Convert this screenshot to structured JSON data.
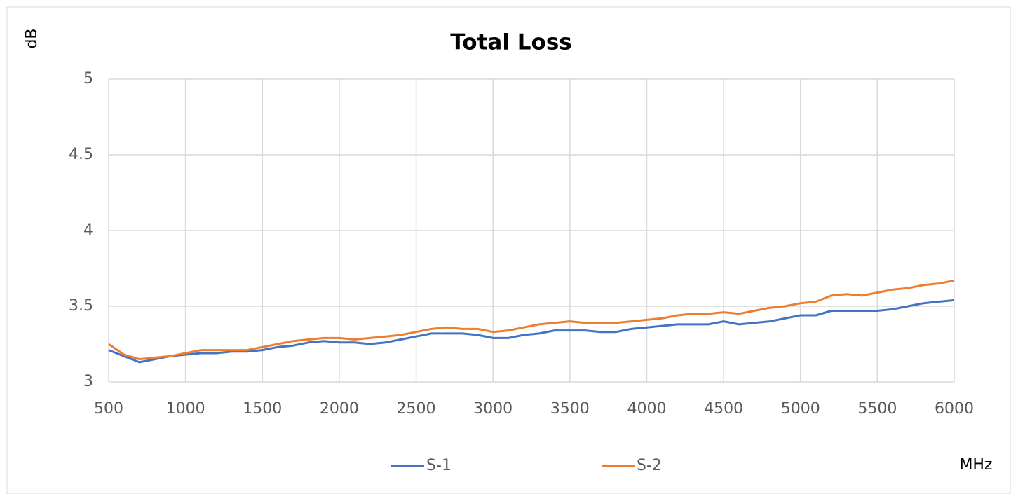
{
  "chart_data": {
    "type": "line",
    "title": "Total Loss",
    "y_label": "dB",
    "x_label": "MHz",
    "x": [
      500,
      600,
      700,
      800,
      900,
      1000,
      1100,
      1200,
      1300,
      1400,
      1500,
      1600,
      1700,
      1800,
      1900,
      2000,
      2100,
      2200,
      2300,
      2400,
      2500,
      2600,
      2700,
      2800,
      2900,
      3000,
      3100,
      3200,
      3300,
      3400,
      3500,
      3600,
      3700,
      3800,
      3900,
      4000,
      4100,
      4200,
      4300,
      4400,
      4500,
      4600,
      4700,
      4800,
      4900,
      5000,
      5100,
      5200,
      5300,
      5400,
      5500,
      5600,
      5700,
      5800,
      5900,
      6000
    ],
    "series": [
      {
        "name": "S-1",
        "color": "#4472c4",
        "values": [
          3.21,
          3.17,
          3.13,
          3.15,
          3.17,
          3.18,
          3.19,
          3.19,
          3.2,
          3.2,
          3.21,
          3.23,
          3.24,
          3.26,
          3.27,
          3.26,
          3.26,
          3.25,
          3.26,
          3.28,
          3.3,
          3.32,
          3.32,
          3.32,
          3.31,
          3.29,
          3.29,
          3.31,
          3.32,
          3.34,
          3.34,
          3.34,
          3.33,
          3.33,
          3.35,
          3.36,
          3.37,
          3.38,
          3.38,
          3.38,
          3.4,
          3.38,
          3.39,
          3.4,
          3.42,
          3.44,
          3.44,
          3.47,
          3.47,
          3.47,
          3.47,
          3.48,
          3.5,
          3.52,
          3.53,
          3.54
        ]
      },
      {
        "name": "S-2",
        "color": "#ed7d31",
        "values": [
          3.25,
          3.18,
          3.15,
          3.16,
          3.17,
          3.19,
          3.21,
          3.21,
          3.21,
          3.21,
          3.23,
          3.25,
          3.27,
          3.28,
          3.29,
          3.29,
          3.28,
          3.29,
          3.3,
          3.31,
          3.33,
          3.35,
          3.36,
          3.35,
          3.35,
          3.33,
          3.34,
          3.36,
          3.38,
          3.39,
          3.4,
          3.39,
          3.39,
          3.39,
          3.4,
          3.41,
          3.42,
          3.44,
          3.45,
          3.45,
          3.46,
          3.45,
          3.47,
          3.49,
          3.5,
          3.52,
          3.53,
          3.57,
          3.58,
          3.57,
          3.59,
          3.61,
          3.62,
          3.64,
          3.65,
          3.67
        ]
      }
    ],
    "xlim": [
      500,
      6000
    ],
    "xticks": [
      500,
      1000,
      1500,
      2000,
      2500,
      3000,
      3500,
      4000,
      4500,
      5000,
      5500,
      6000
    ],
    "ylim": [
      3,
      5
    ],
    "yticks": [
      5,
      4.5,
      4,
      3.5,
      3
    ],
    "grid": true,
    "legend": "bottom"
  }
}
